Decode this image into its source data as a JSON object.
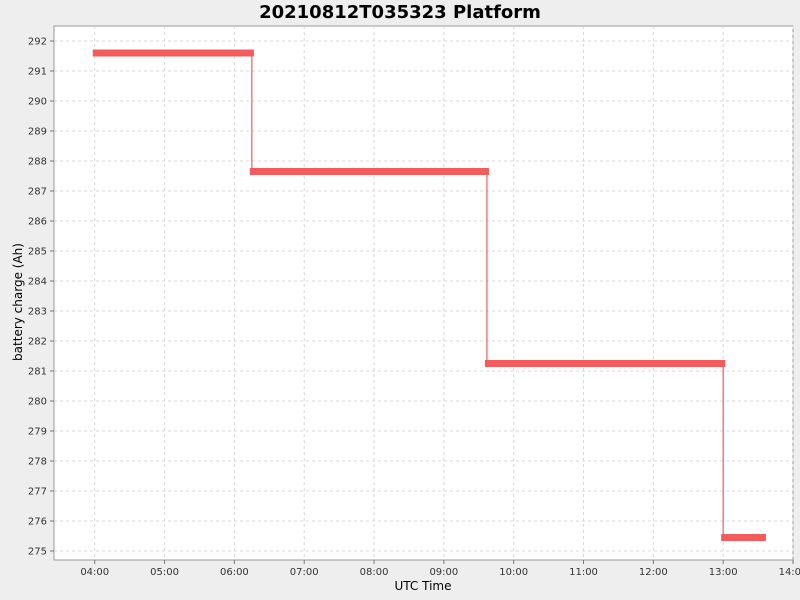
{
  "chart_data": {
    "type": "line",
    "title": "20210812T035323 Platform",
    "xlabel": "UTC Time",
    "ylabel": "battery charge (Ah)",
    "x_ticks": [
      "04:00",
      "05:00",
      "06:00",
      "07:00",
      "08:00",
      "09:00",
      "10:00",
      "11:00",
      "12:00",
      "13:00",
      "14:00"
    ],
    "y_ticks": [
      "275",
      "276",
      "277",
      "278",
      "279",
      "280",
      "281",
      "282",
      "283",
      "284",
      "285",
      "286",
      "287",
      "288",
      "289",
      "290",
      "291",
      "292"
    ],
    "xlim": [
      "03:25",
      "14:00"
    ],
    "ylim": [
      274.7,
      292.5
    ],
    "grid": true,
    "series_color": "#f45b5b",
    "series": [
      {
        "values": [
          {
            "x": "04:00",
            "y": 291.6
          },
          {
            "x": "06:15",
            "y": 291.6
          },
          {
            "x": "06:15",
            "y": 287.65
          },
          {
            "x": "09:37",
            "y": 287.65
          },
          {
            "x": "09:37",
            "y": 281.25
          },
          {
            "x": "13:00",
            "y": 281.25
          },
          {
            "x": "13:00",
            "y": 275.45
          },
          {
            "x": "13:35",
            "y": 275.45
          }
        ]
      }
    ]
  }
}
